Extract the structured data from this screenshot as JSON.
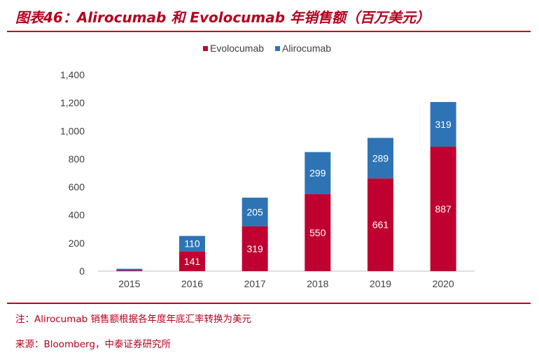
{
  "title": "图表46：Alirocumab 和 Evolocumab 年销售额（百万美元）",
  "notes": {
    "note": "注：Alirocumab 销售额根据各年度年底汇率转换为美元",
    "source": "来源：Bloomberg，中泰证券研究所"
  },
  "colors": {
    "evolocumab": "#c00030",
    "alirocumab": "#2e74b5",
    "accent": "#c1001f"
  },
  "chart_data": {
    "type": "bar",
    "stacked": true,
    "categories": [
      "2015",
      "2016",
      "2017",
      "2018",
      "2019",
      "2020"
    ],
    "series": [
      {
        "name": "Evolocumab",
        "values": [
          5,
          141,
          319,
          550,
          661,
          887
        ],
        "labels": [
          "",
          "141",
          "319",
          "550",
          "661",
          "887"
        ]
      },
      {
        "name": "Alirocumab",
        "values": [
          12,
          110,
          205,
          299,
          289,
          319
        ],
        "labels": [
          "",
          "110",
          "205",
          "299",
          "289",
          "319"
        ]
      }
    ],
    "yticks": [
      "0",
      "200",
      "400",
      "600",
      "800",
      "1,000",
      "1,200",
      "1,400"
    ],
    "ylim": [
      0,
      1400
    ],
    "legend_position": "top-center",
    "grid": false
  }
}
